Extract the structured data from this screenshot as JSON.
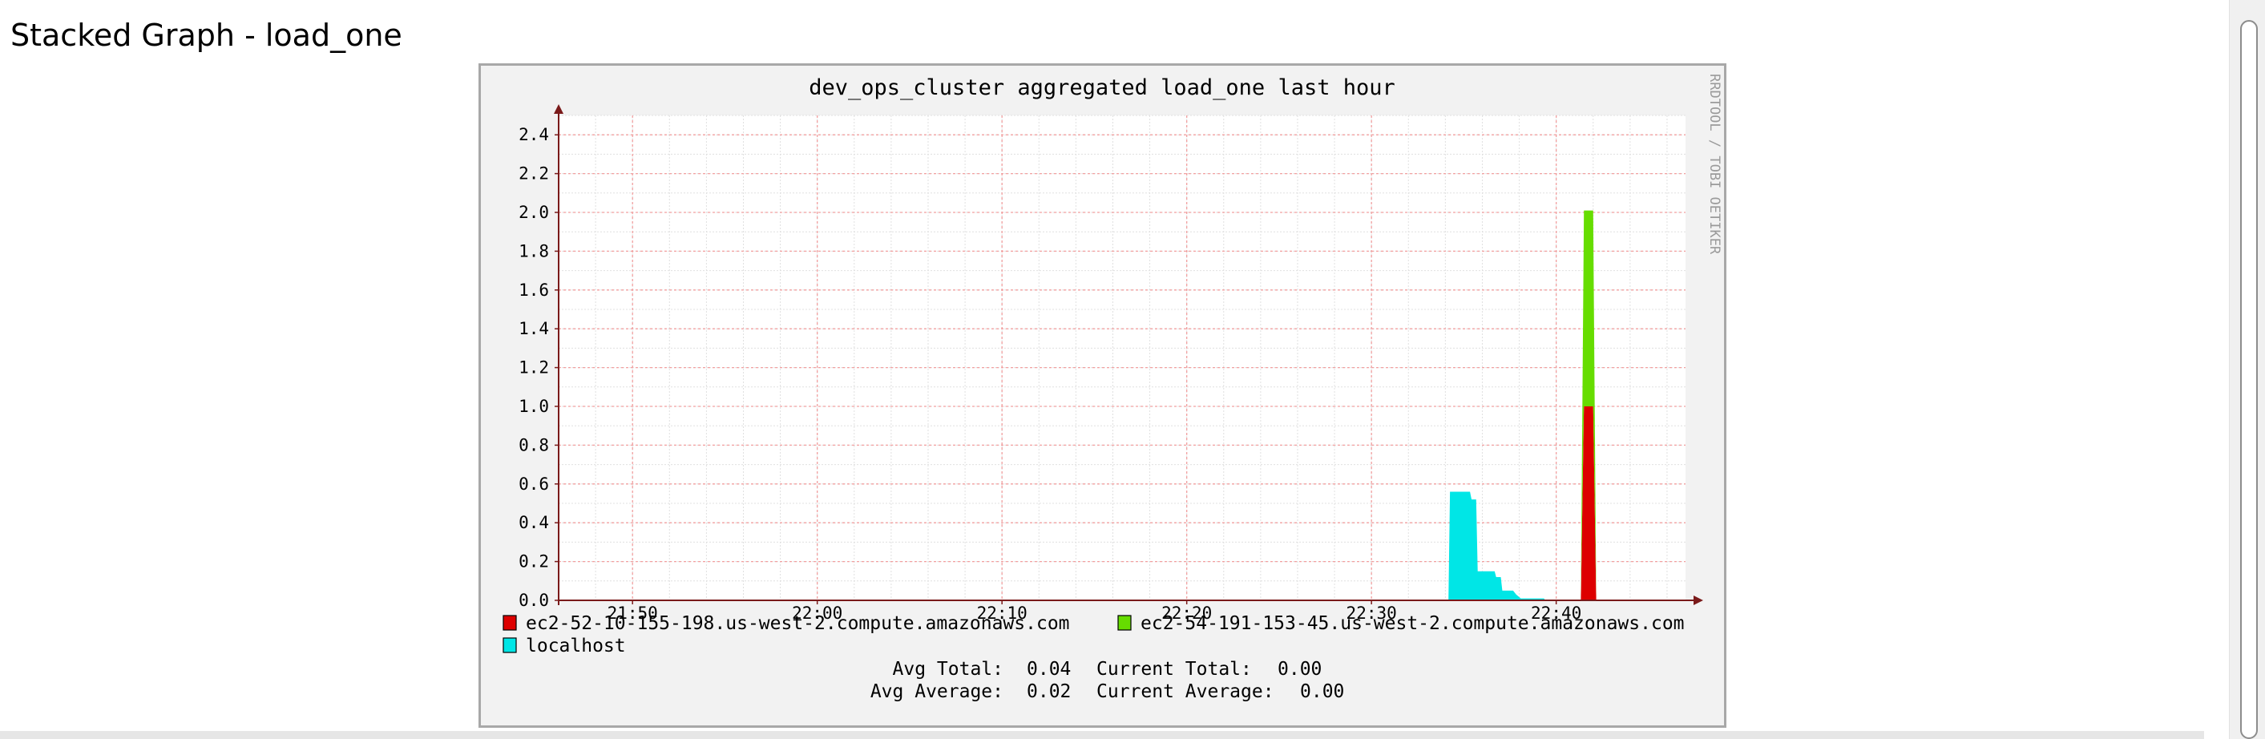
{
  "page": {
    "heading": "Stacked Graph - load_one"
  },
  "colors": {
    "background": "#f2f2f2",
    "canvas": "#ffffff",
    "grid_major": "#f2a0a0",
    "grid_minor": "#e0e0e0",
    "axis": "#7a1a1a",
    "text": "#000000",
    "watermark": "#9a9a9a"
  },
  "watermark": "RRDTOOL / TOBI OETIKER",
  "chart_data": {
    "type": "area",
    "stacked": true,
    "title": "dev_ops_cluster aggregated load_one last hour",
    "xlabel": "",
    "ylabel": "",
    "x_range": [
      "21:46",
      "22:47"
    ],
    "ylim": [
      0,
      2.5
    ],
    "x_ticks": [
      "21:50",
      "22:00",
      "22:10",
      "22:20",
      "22:30",
      "22:40"
    ],
    "y_ticks": [
      "0.0",
      "0.2",
      "0.4",
      "0.6",
      "0.8",
      "1.0",
      "1.2",
      "1.4",
      "1.6",
      "1.8",
      "2.0",
      "2.2",
      "2.4"
    ],
    "grid": true,
    "legend_position": "bottom",
    "series": [
      {
        "name": "ec2-52-10-155-198.us-west-2.compute.amazonaws.com",
        "color": "#dd0000",
        "points": [
          {
            "x": "22:41:20",
            "y": 0
          },
          {
            "x": "22:41:30",
            "y": 1.0
          },
          {
            "x": "22:42:00",
            "y": 1.0
          },
          {
            "x": "22:42:10",
            "y": 0
          }
        ]
      },
      {
        "name": "ec2-54-191-153-45.us-west-2.compute.amazonaws.com",
        "color": "#66dd00",
        "points": [
          {
            "x": "22:41:20",
            "y": 0
          },
          {
            "x": "22:41:30",
            "y": 1.01
          },
          {
            "x": "22:42:00",
            "y": 1.01
          },
          {
            "x": "22:42:10",
            "y": 0
          }
        ]
      },
      {
        "name": "localhost",
        "color": "#00e6e6",
        "points": [
          {
            "x": "22:34:10",
            "y": 0
          },
          {
            "x": "22:34:15",
            "y": 0.56
          },
          {
            "x": "22:35:20",
            "y": 0.56
          },
          {
            "x": "22:35:25",
            "y": 0.52
          },
          {
            "x": "22:35:40",
            "y": 0.52
          },
          {
            "x": "22:35:45",
            "y": 0.15
          },
          {
            "x": "22:36:30",
            "y": 0.15
          },
          {
            "x": "22:36:40",
            "y": 0.15
          },
          {
            "x": "22:36:45",
            "y": 0.12
          },
          {
            "x": "22:37:00",
            "y": 0.12
          },
          {
            "x": "22:37:05",
            "y": 0.05
          },
          {
            "x": "22:37:40",
            "y": 0.05
          },
          {
            "x": "22:37:50",
            "y": 0.03
          },
          {
            "x": "22:38:05",
            "y": 0.01
          },
          {
            "x": "22:39:20",
            "y": 0.01
          },
          {
            "x": "22:39:25",
            "y": 0
          }
        ]
      }
    ],
    "legend": [
      {
        "label": "ec2-52-10-155-198.us-west-2.compute.amazonaws.com",
        "color": "#dd0000"
      },
      {
        "label": "ec2-54-191-153-45.us-west-2.compute.amazonaws.com",
        "color": "#66dd00"
      },
      {
        "label": "localhost",
        "color": "#00e6e6"
      }
    ],
    "stats": {
      "avg_total_label": "Avg Total:",
      "avg_total": "0.04",
      "current_total_label": "Current Total:",
      "current_total": "0.00",
      "avg_average_label": "Avg Average:",
      "avg_average": "0.02",
      "current_average_label": "Current Average:",
      "current_average": "0.00"
    }
  }
}
